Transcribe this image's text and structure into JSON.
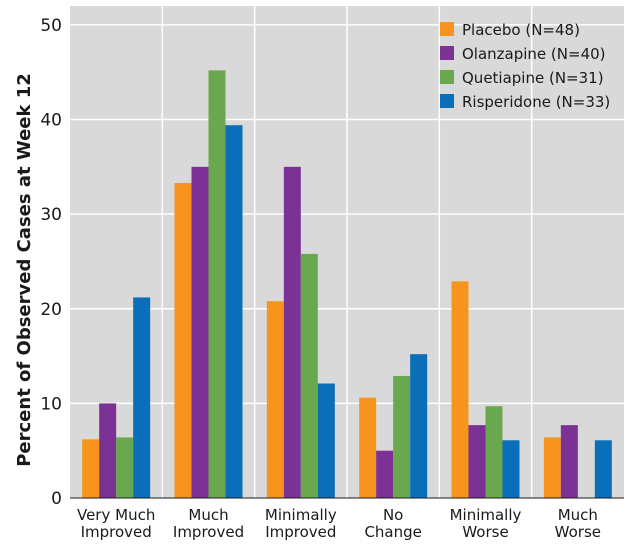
{
  "chart_data": {
    "type": "bar",
    "title": "",
    "xlabel": "",
    "ylabel": "Percent of Observed Cases at Week 12",
    "ylim": [
      0,
      52
    ],
    "yticks": [
      0,
      10,
      20,
      30,
      40,
      50
    ],
    "grid": true,
    "legend_position": "top-right",
    "categories": [
      [
        "Very Much",
        "Improved"
      ],
      [
        "Much",
        "Improved"
      ],
      [
        "Minimally",
        "Improved"
      ],
      [
        "No",
        "Change"
      ],
      [
        "Minimally",
        "Worse"
      ],
      [
        "Much",
        "Worse"
      ]
    ],
    "series": [
      {
        "name": "Placebo (N=48)",
        "color": "#f7941d",
        "values": [
          6.2,
          33.3,
          20.8,
          10.6,
          22.9,
          6.4
        ]
      },
      {
        "name": "Olanzapine (N=40)",
        "color": "#7b3294",
        "values": [
          10.0,
          35.0,
          35.0,
          5.0,
          7.7,
          7.7
        ]
      },
      {
        "name": "Quetiapine (N=31)",
        "color": "#6aa84f",
        "values": [
          6.4,
          45.2,
          25.8,
          12.9,
          9.7,
          0
        ]
      },
      {
        "name": "Risperidone (N=33)",
        "color": "#0a6fb8",
        "values": [
          21.2,
          39.4,
          12.1,
          15.2,
          6.1,
          6.1
        ]
      }
    ]
  }
}
